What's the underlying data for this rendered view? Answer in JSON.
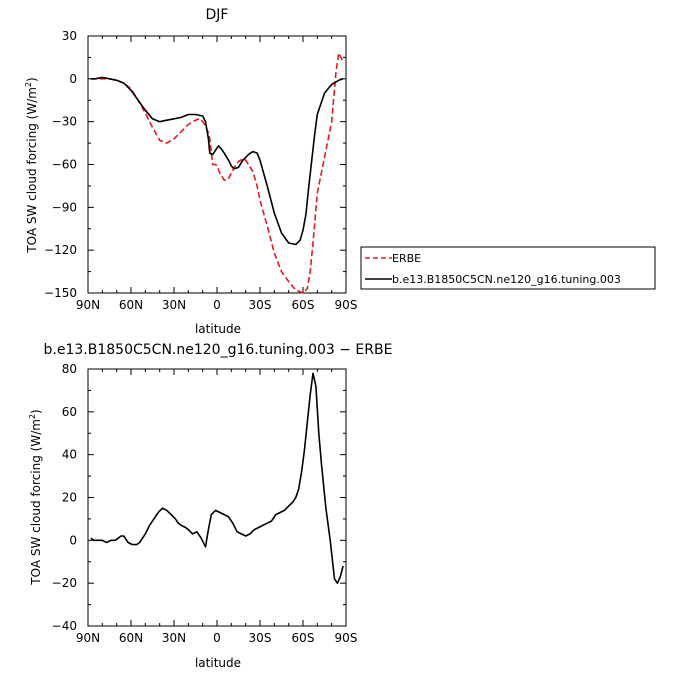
{
  "chart_data": [
    {
      "type": "line",
      "title": "DJF",
      "xlabel": "latitude",
      "ylabel": "TOA SW cloud forcing (W/m²)",
      "ylabel_main": "TOA SW cloud forcing (W/m",
      "ylabel_sup": "2",
      "ylabel_end": ")",
      "xlim": [
        90,
        -90
      ],
      "ylim": [
        -150,
        30
      ],
      "x_ticks": [
        90,
        60,
        30,
        0,
        -30,
        -60,
        -90
      ],
      "x_tick_labels": [
        "90N",
        "60N",
        "30N",
        "0",
        "30S",
        "60S",
        "90S"
      ],
      "y_ticks": [
        30,
        0,
        -30,
        -60,
        -90,
        -120,
        -150
      ],
      "y_tick_labels": [
        "30",
        "0",
        "−30",
        "−60",
        "−90",
        "−120",
        "−150"
      ],
      "grid": false,
      "legend_position": "right",
      "series": [
        {
          "name": "ERBE",
          "color": "#e41a1c",
          "dash": "dashed",
          "x": [
            88,
            85,
            80,
            75,
            70,
            65,
            60,
            55,
            50,
            45,
            40,
            35,
            30,
            25,
            20,
            15,
            12,
            10,
            8,
            6,
            5,
            3,
            1,
            0,
            -2,
            -5,
            -8,
            -10,
            -12,
            -15,
            -18,
            -20,
            -22,
            -25,
            -28,
            -30,
            -35,
            -40,
            -45,
            -50,
            -55,
            -60,
            -63,
            -65,
            -67,
            -70,
            -75,
            -80,
            -83,
            -85,
            -88
          ],
          "y": [
            0,
            0,
            0,
            0,
            -1,
            -3,
            -7,
            -15,
            -24,
            -34,
            -43,
            -45,
            -42,
            -37,
            -32,
            -29,
            -28,
            -30,
            -33,
            -38,
            -42,
            -60,
            -60,
            -61,
            -66,
            -71,
            -70,
            -66,
            -62,
            -58,
            -56,
            -57,
            -60,
            -65,
            -75,
            -85,
            -103,
            -122,
            -135,
            -142,
            -148,
            -150,
            -147,
            -135,
            -115,
            -80,
            -55,
            -30,
            5,
            18,
            12
          ]
        },
        {
          "name": "b.e13.B1850C5CN.ne120_g16.tuning.003",
          "color": "#000000",
          "dash": "solid",
          "x": [
            88,
            85,
            80,
            75,
            70,
            65,
            60,
            55,
            50,
            45,
            40,
            35,
            30,
            25,
            20,
            15,
            10,
            8,
            6,
            5,
            3,
            1,
            -1,
            -3,
            -5,
            -8,
            -10,
            -12,
            -15,
            -18,
            -20,
            -22,
            -25,
            -28,
            -30,
            -35,
            -40,
            -45,
            -50,
            -55,
            -58,
            -60,
            -62,
            -64,
            -66,
            -68,
            -70,
            -75,
            -80,
            -85,
            -88
          ],
          "y": [
            0,
            0,
            1,
            0,
            -1,
            -3,
            -8,
            -15,
            -22,
            -28,
            -30,
            -29,
            -28,
            -27,
            -25,
            -25,
            -26,
            -30,
            -42,
            -52,
            -53,
            -50,
            -47,
            -49,
            -52,
            -57,
            -61,
            -63,
            -62,
            -57,
            -55,
            -53,
            -51,
            -52,
            -57,
            -75,
            -94,
            -108,
            -115,
            -116,
            -113,
            -106,
            -95,
            -76,
            -58,
            -40,
            -25,
            -10,
            -4,
            -1,
            0
          ]
        }
      ]
    },
    {
      "type": "line",
      "title": "b.e13.B1850C5CN.ne120_g16.tuning.003 − ERBE",
      "xlabel": "latitude",
      "ylabel": "TOA SW cloud forcing (W/m²)",
      "ylabel_main": "TOA SW cloud forcing (W/m",
      "ylabel_sup": "2",
      "ylabel_end": ")",
      "xlim": [
        90,
        -90
      ],
      "ylim": [
        -40,
        80
      ],
      "x_ticks": [
        90,
        60,
        30,
        0,
        -30,
        -60,
        -90
      ],
      "x_tick_labels": [
        "90N",
        "60N",
        "30N",
        "0",
        "30S",
        "60S",
        "90S"
      ],
      "y_ticks": [
        80,
        60,
        40,
        20,
        0,
        -20,
        -40
      ],
      "y_tick_labels": [
        "80",
        "60",
        "40",
        "20",
        "0",
        "−20",
        "−40"
      ],
      "grid": false,
      "series": [
        {
          "color": "#000000",
          "dash": "solid",
          "x": [
            88,
            86,
            84,
            82,
            80,
            77,
            74,
            71,
            69,
            67,
            65,
            62,
            59,
            56,
            54,
            52,
            50,
            47,
            44,
            41,
            38,
            35,
            32,
            29,
            27,
            25,
            22,
            20,
            17,
            14,
            11,
            8,
            6,
            4,
            1,
            -2,
            -5,
            -8,
            -11,
            -14,
            -17,
            -20,
            -23,
            -26,
            -29,
            -32,
            -35,
            -38,
            -41,
            -44,
            -47,
            -50,
            -53,
            -55,
            -57,
            -59,
            -61,
            -63,
            -65,
            -67,
            -69,
            -71,
            -73,
            -76,
            -79,
            -82,
            -84,
            -86,
            -88
          ],
          "y": [
            1,
            0,
            0,
            0,
            0,
            -1,
            0,
            0,
            1,
            2,
            2,
            -1,
            -2,
            -2,
            -1,
            1,
            3,
            7,
            10,
            13,
            15,
            14,
            12,
            10,
            8,
            7,
            6,
            5,
            3,
            4,
            1,
            -3,
            5,
            12,
            14,
            13,
            12,
            11,
            8,
            4,
            3,
            2,
            3,
            5,
            6,
            7,
            8,
            9,
            12,
            13,
            14,
            16,
            18,
            20,
            24,
            32,
            42,
            55,
            68,
            78,
            72,
            50,
            35,
            15,
            0,
            -18,
            -20,
            -17,
            -12
          ]
        }
      ]
    }
  ]
}
